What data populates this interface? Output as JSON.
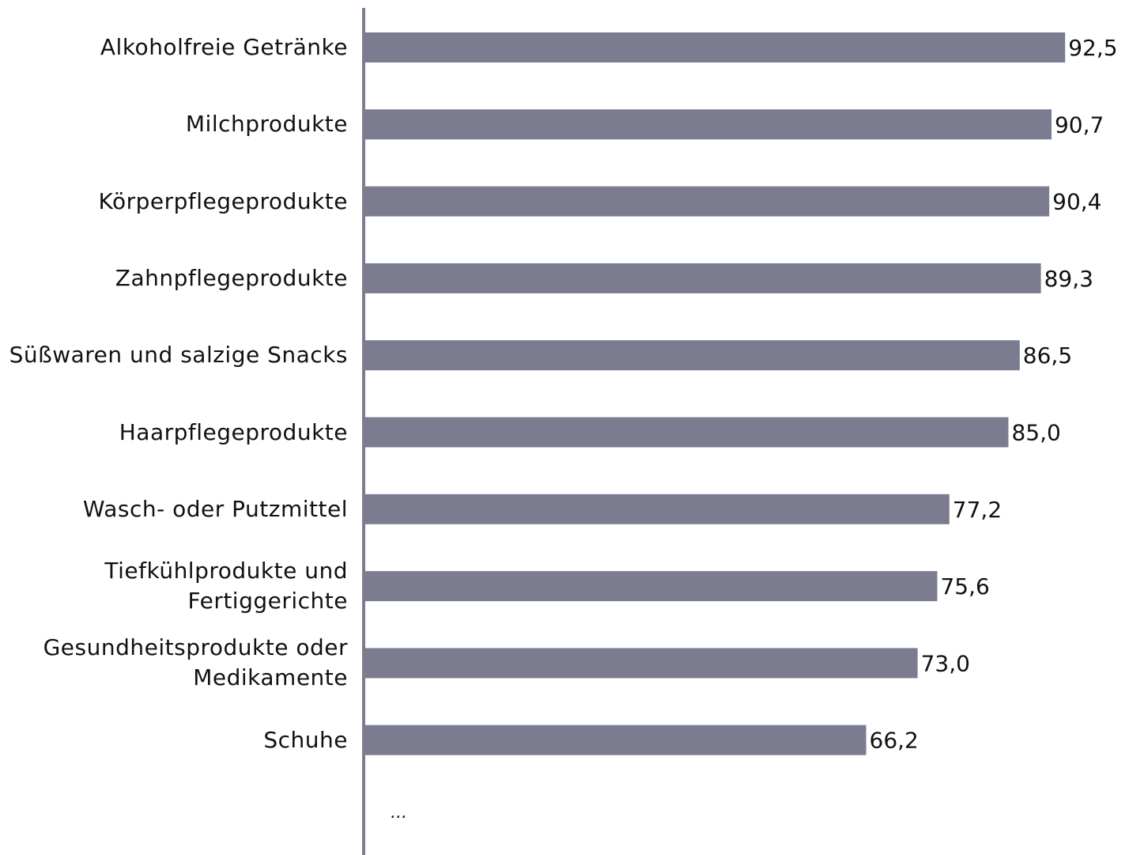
{
  "chart_data": {
    "type": "bar",
    "orientation": "horizontal",
    "categories": [
      "Alkoholfreie Getränke",
      "Milchprodukte",
      "Körperpflegeprodukte",
      "Zahnpflegeprodukte",
      "Süßwaren und salzige Snacks",
      "Haarpflegeprodukte",
      "Wasch- oder Putzmittel",
      "Tiefkühlprodukte und Fertiggerichte",
      "Gesundheitsprodukte oder Medikamente",
      "Schuhe"
    ],
    "values": [
      92.5,
      90.7,
      90.4,
      89.3,
      86.5,
      85.0,
      77.2,
      75.6,
      73.0,
      66.2
    ],
    "value_labels": [
      "92,5",
      "90,7",
      "90,4",
      "89,3",
      "86,5",
      "85,0",
      "77,2",
      "75,6",
      "73,0",
      "66,2"
    ],
    "color": "#7c7c90",
    "xlim": [
      0,
      100
    ],
    "annotation": "..."
  }
}
